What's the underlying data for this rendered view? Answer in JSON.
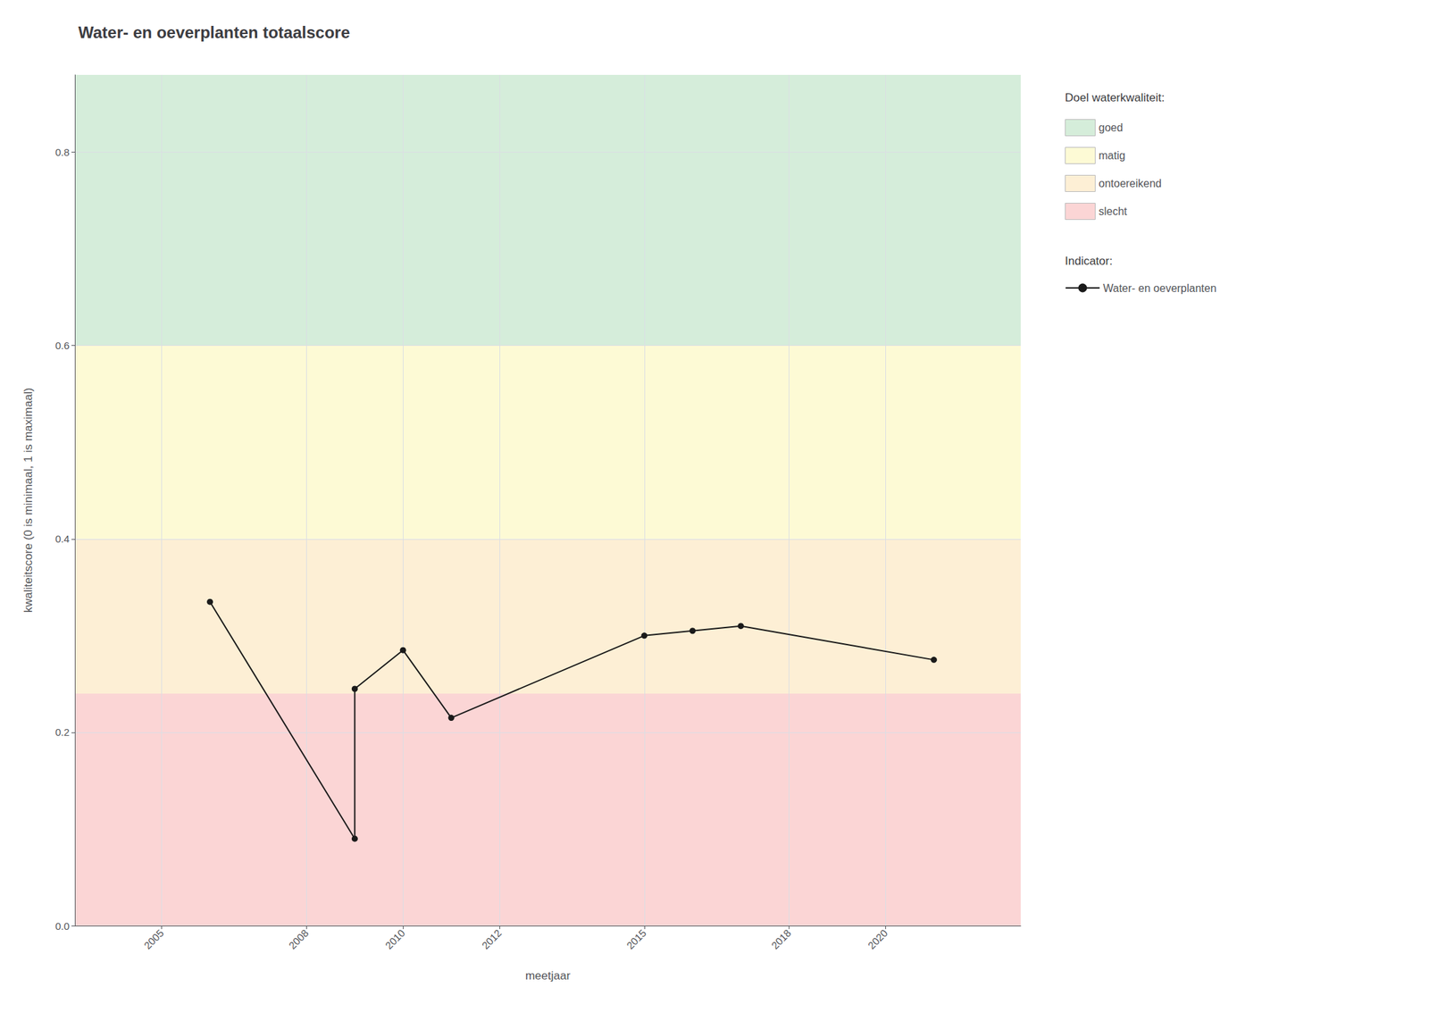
{
  "chart_data": {
    "type": "line",
    "title": "Water- en oeverplanten totaalscore",
    "x_label": "meetjaar",
    "y_label": "kwaliteitscore (0 is minimaal, 1 is maximaal)",
    "x": [
      2006,
      2009,
      2009,
      2010,
      2011,
      2015,
      2016,
      2017,
      2021
    ],
    "series": [
      {
        "name": "Water- en oeverplanten",
        "color": "#1a1a1a",
        "marker": "circle",
        "values": [
          0.335,
          0.09,
          0.245,
          0.285,
          0.215,
          0.3,
          0.305,
          0.31,
          0.275
        ]
      }
    ],
    "xlim": [
      2003.2,
      2022.8
    ],
    "ylim": [
      0.0,
      0.88
    ],
    "xticks": [
      2005,
      2008,
      2010,
      2012,
      2015,
      2018,
      2020
    ],
    "yticks": [
      {
        "value": 0.0,
        "label": "0.0"
      },
      0.2,
      0.4,
      0.6,
      0.8
    ],
    "grid": true,
    "legend": "right",
    "bands_title": "Doel waterkwaliteit:",
    "bands": [
      {
        "name": "goed",
        "ymin": 0.6,
        "ymax": 0.88,
        "color": "#d5edda"
      },
      {
        "name": "matig",
        "ymin": 0.4,
        "ymax": 0.6,
        "color": "#fdfad5"
      },
      {
        "name": "ontoereikend",
        "ymin": 0.24,
        "ymax": 0.4,
        "color": "#fdefd5"
      },
      {
        "name": "slecht",
        "ymin": 0.0,
        "ymax": 0.24,
        "color": "#fbd5d5"
      }
    ],
    "series_title": "Indicator:"
  }
}
